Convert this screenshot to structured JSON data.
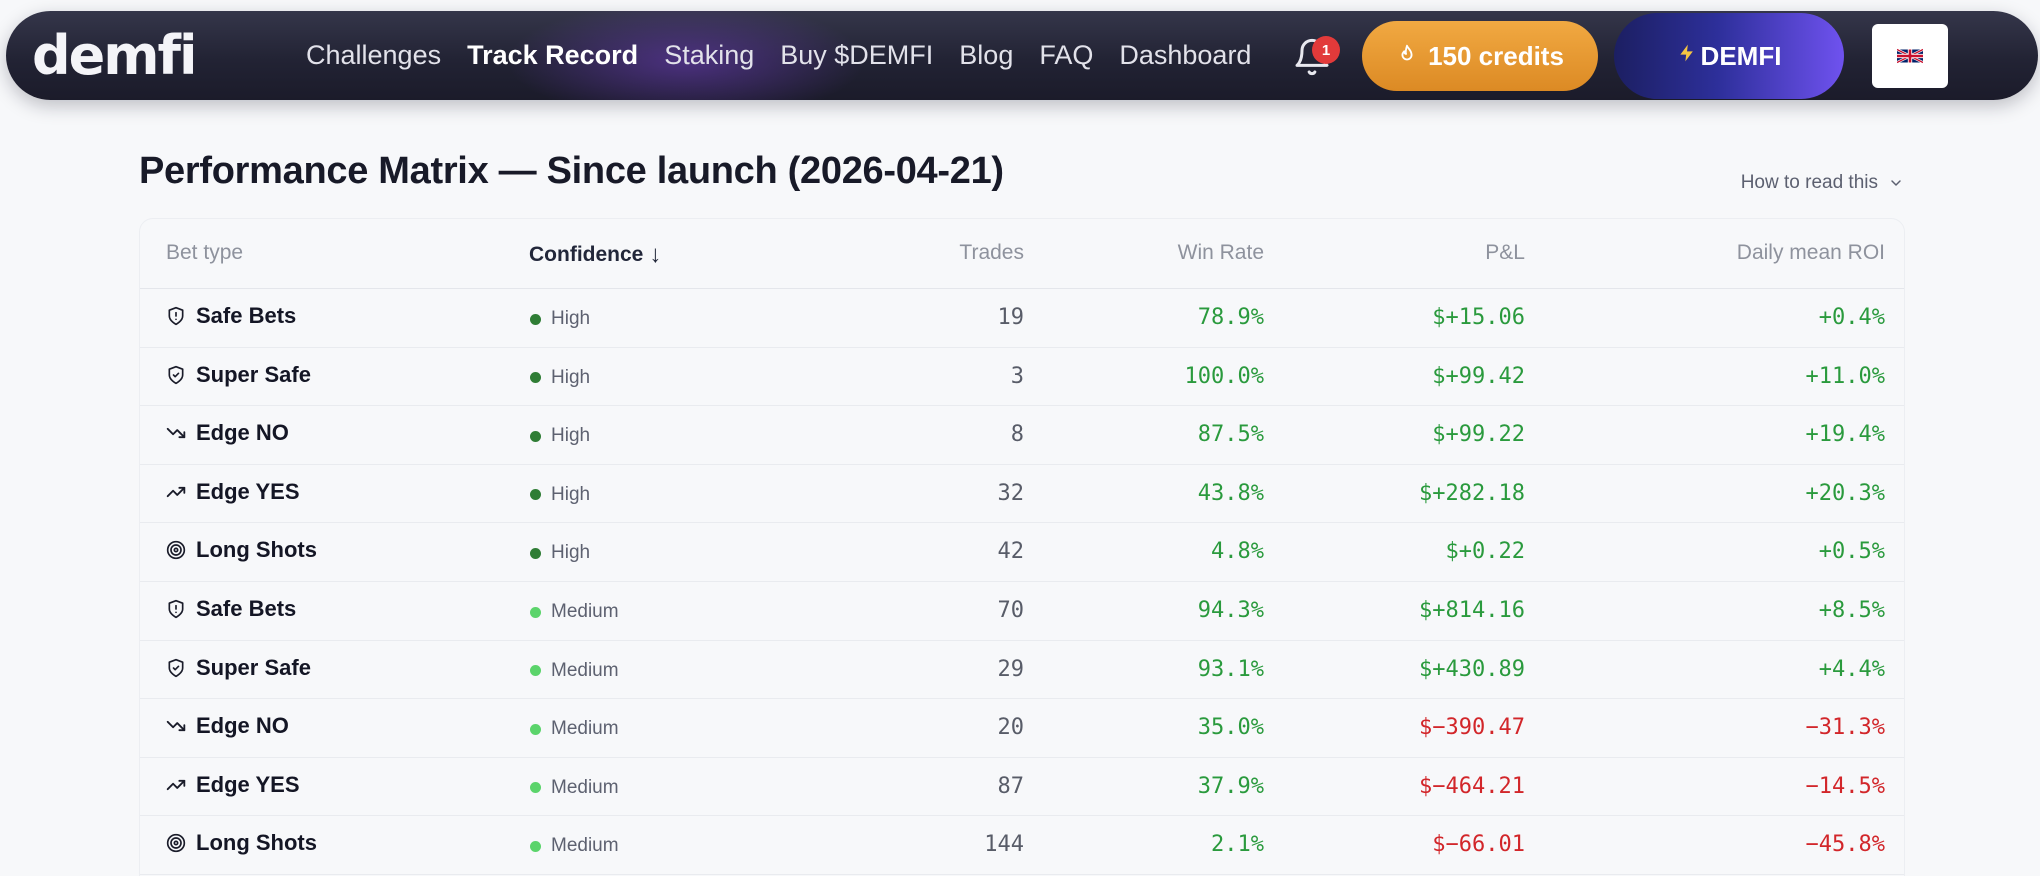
{
  "nav": {
    "logo": "demfi",
    "links": [
      "Challenges",
      "Track Record",
      "Staking",
      "Buy $DEMFI",
      "Blog",
      "FAQ",
      "Dashboard"
    ],
    "active_link": "Track Record",
    "notifications_count": "1",
    "credits_label": "150 credits",
    "demfi_label": "DEMFI",
    "language_flag": "🇬🇧",
    "icons": {
      "bell": "bell-icon",
      "credits": "flame-icon",
      "demfi": "lightning-icon"
    }
  },
  "page": {
    "title": "Performance Matrix — Since launch (2026-04-21)",
    "how_to_read": "How to read this"
  },
  "table": {
    "headers": {
      "bet_type": "Bet type",
      "confidence": "Confidence",
      "trades": "Trades",
      "win_rate": "Win Rate",
      "pnl": "P&L",
      "roi": "Daily mean ROI"
    },
    "sort_indicator": "↓",
    "rows": [
      {
        "bet_type": "Safe Bets",
        "icon": "shield-alert-icon",
        "confidence": "High",
        "trades": "19",
        "win_rate": "78.9%",
        "pnl": "$+15.06",
        "roi": "+0.4%"
      },
      {
        "bet_type": "Super Safe",
        "icon": "shield-check-icon",
        "confidence": "High",
        "trades": "3",
        "win_rate": "100.0%",
        "pnl": "$+99.42",
        "roi": "+11.0%"
      },
      {
        "bet_type": "Edge NO",
        "icon": "trending-down-icon",
        "confidence": "High",
        "trades": "8",
        "win_rate": "87.5%",
        "pnl": "$+99.22",
        "roi": "+19.4%"
      },
      {
        "bet_type": "Edge YES",
        "icon": "trending-up-icon",
        "confidence": "High",
        "trades": "32",
        "win_rate": "43.8%",
        "pnl": "$+282.18",
        "roi": "+20.3%"
      },
      {
        "bet_type": "Long Shots",
        "icon": "target-icon",
        "confidence": "High",
        "trades": "42",
        "win_rate": "4.8%",
        "pnl": "$+0.22",
        "roi": "+0.5%"
      },
      {
        "bet_type": "Safe Bets",
        "icon": "shield-alert-icon",
        "confidence": "Medium",
        "trades": "70",
        "win_rate": "94.3%",
        "pnl": "$+814.16",
        "roi": "+8.5%"
      },
      {
        "bet_type": "Super Safe",
        "icon": "shield-check-icon",
        "confidence": "Medium",
        "trades": "29",
        "win_rate": "93.1%",
        "pnl": "$+430.89",
        "roi": "+4.4%"
      },
      {
        "bet_type": "Edge NO",
        "icon": "trending-down-icon",
        "confidence": "Medium",
        "trades": "20",
        "win_rate": "35.0%",
        "pnl": "$−390.47",
        "roi": "−31.3%"
      },
      {
        "bet_type": "Edge YES",
        "icon": "trending-up-icon",
        "confidence": "Medium",
        "trades": "87",
        "win_rate": "37.9%",
        "pnl": "$−464.21",
        "roi": "−14.5%"
      },
      {
        "bet_type": "Long Shots",
        "icon": "target-icon",
        "confidence": "Medium",
        "trades": "144",
        "win_rate": "2.1%",
        "pnl": "$−66.01",
        "roi": "−45.8%"
      }
    ]
  },
  "colors": {
    "high_dot": "#2f7d35",
    "medium_dot": "#5bd46b",
    "positive": "#2a9a3d",
    "negative": "#d2262a",
    "credits_orange": "#e89a30",
    "demfi_purple": "#5b46d8"
  }
}
